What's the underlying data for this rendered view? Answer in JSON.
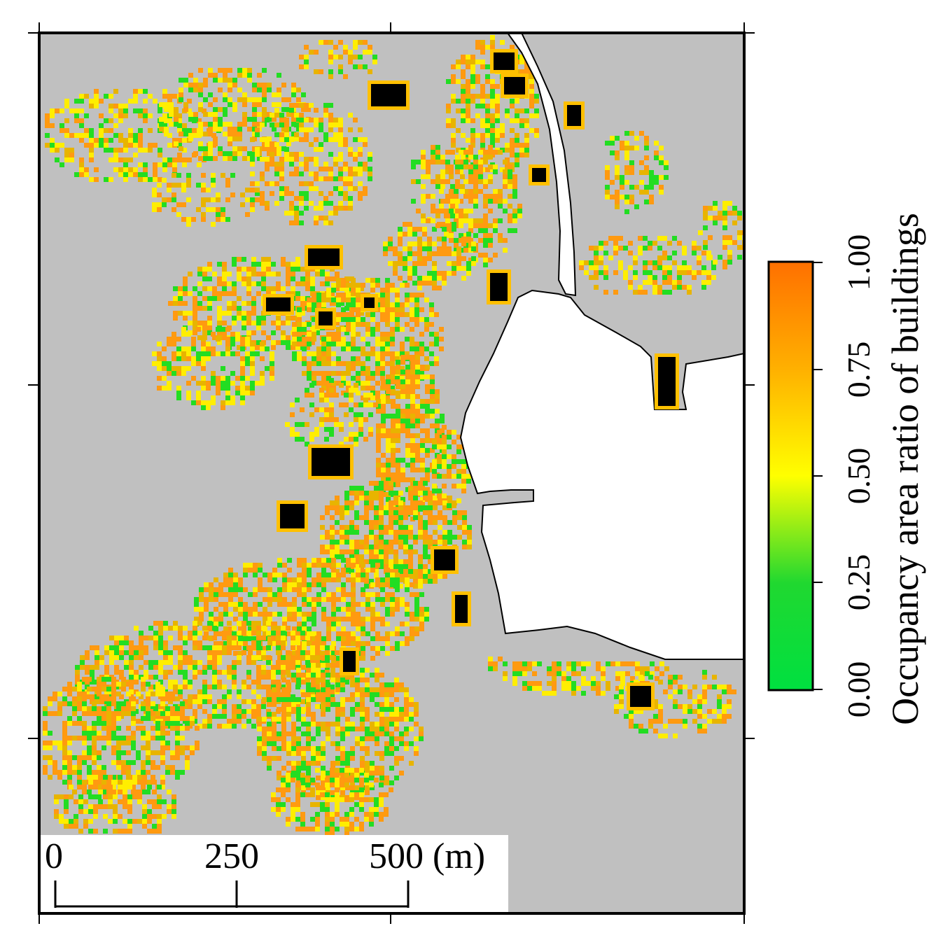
{
  "map": {
    "background_color": "#c0c0c0",
    "water_color": "#ffffff",
    "building_color": "#000000"
  },
  "scale_bar": {
    "labels": [
      "0",
      "250",
      "500 (m)"
    ],
    "values_m": [
      0,
      250,
      500
    ]
  },
  "colorbar": {
    "title": "Occupancy area ratio of buildings",
    "ticks": [
      "0.00",
      "0.25",
      "0.50",
      "0.75",
      "1.00"
    ],
    "tick_values": [
      0,
      0.25,
      0.5,
      0.75,
      1.0
    ],
    "range": [
      0,
      1
    ],
    "colors": [
      "#00e040",
      "#ffff00",
      "#ff7000"
    ]
  }
}
